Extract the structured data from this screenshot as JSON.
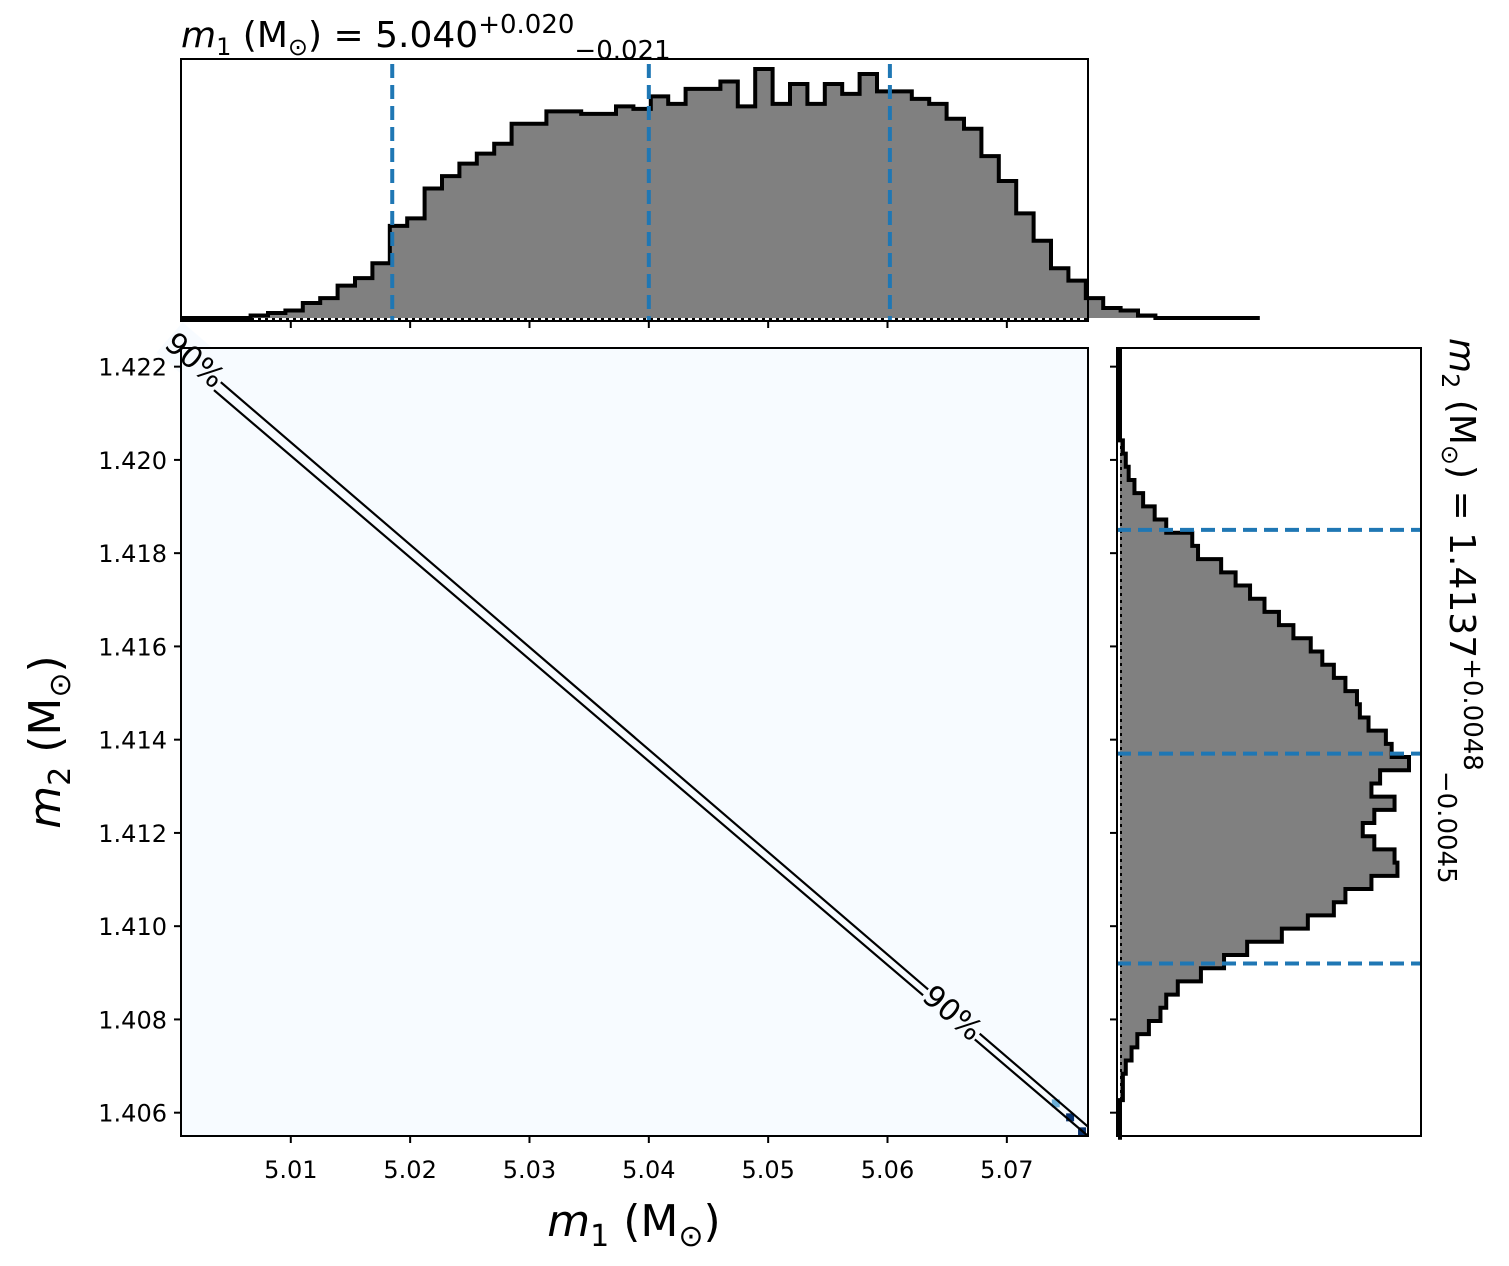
{
  "colors": {
    "hist_fill": "#808080",
    "hist_edge": "#000000",
    "quantile_line": "#1f77b4",
    "density_background": "#f7fbff",
    "density_high": "#08306b",
    "density_mid": "#6baed6"
  },
  "chart_data": [
    {
      "type": "histogram",
      "panel": "top-marginal",
      "title_var": "m",
      "title_sub": "1",
      "title_units": " (M",
      "title_eq": ") = 5.040",
      "title_plus": "+0.020",
      "title_minus": "−0.021",
      "median": 5.04,
      "quantiles": [
        5.0185,
        5.04,
        5.0602
      ],
      "xlim": [
        5.0008,
        5.0768
      ],
      "x_ticks": [
        5.01,
        5.02,
        5.03,
        5.04,
        5.05,
        5.06,
        5.07
      ],
      "bin_edges_start": 5.0008,
      "bin_width": 0.001458,
      "counts": [
        0,
        0,
        0,
        0,
        1,
        2,
        3,
        6,
        8,
        13,
        16,
        22,
        37,
        40,
        52,
        57,
        62,
        66,
        70,
        78,
        78,
        83,
        83,
        82,
        82,
        85,
        84,
        89,
        86,
        92,
        92,
        95,
        85,
        100,
        86,
        94,
        86,
        94,
        90,
        98,
        91,
        91,
        88,
        86,
        80,
        76,
        65,
        55,
        42,
        31,
        20,
        15,
        8,
        4,
        3,
        1,
        0,
        0,
        0,
        0,
        0,
        0
      ]
    },
    {
      "type": "heatmap",
      "panel": "joint-2d",
      "xlabel_var": "m",
      "xlabel_sub": "1",
      "xlabel_units": " (M",
      "xlabel_close": ")",
      "ylabel_var": "m",
      "ylabel_sub": "2",
      "ylabel_units": " (M",
      "ylabel_close": ")",
      "xlim": [
        5.0008,
        5.0768
      ],
      "ylim": [
        1.4055,
        1.4224
      ],
      "x_ticks": [
        5.01,
        5.02,
        5.03,
        5.04,
        5.05,
        5.06,
        5.07
      ],
      "y_ticks": [
        1.406,
        1.408,
        1.41,
        1.412,
        1.414,
        1.416,
        1.418,
        1.42,
        1.422
      ],
      "contour_label": "90%",
      "contour_lines": [
        {
          "x": [
            5.0008,
            5.0768
          ],
          "y": [
            1.4224,
            1.4057
          ]
        },
        {
          "x": [
            5.0008,
            5.0768
          ],
          "y": [
            1.4221,
            1.4055
          ]
        }
      ],
      "high_density_cells": [
        {
          "x": 5.0011,
          "y": 1.4223,
          "level": "high"
        },
        {
          "x": 5.0031,
          "y": 1.422,
          "level": "mid"
        },
        {
          "x": 5.0741,
          "y": 1.4062,
          "level": "mid"
        },
        {
          "x": 5.0753,
          "y": 1.4059,
          "level": "high"
        },
        {
          "x": 5.0763,
          "y": 1.4056,
          "level": "high"
        }
      ]
    },
    {
      "type": "histogram",
      "panel": "right-marginal",
      "orientation": "horizontal",
      "title_var": "m",
      "title_sub": "2",
      "title_units": " (M",
      "title_eq": ") = 1.4137",
      "title_plus": "+0.0048",
      "title_minus": "−0.0045",
      "median": 1.4137,
      "quantiles": [
        1.4092,
        1.4137,
        1.4185
      ],
      "ylim": [
        1.4055,
        1.4224
      ],
      "bin_edges_start": 1.4224,
      "bin_width": -0.000283,
      "counts": [
        0,
        0,
        0,
        0,
        0,
        0,
        0,
        1,
        2,
        3,
        5,
        8,
        12,
        16,
        25,
        27,
        35,
        40,
        45,
        50,
        55,
        60,
        66,
        70,
        74,
        78,
        82,
        83,
        86,
        92,
        94,
        100,
        90,
        87,
        95,
        88,
        84,
        88,
        95,
        96,
        87,
        78,
        74,
        65,
        56,
        44,
        36,
        28,
        20,
        16,
        14,
        10,
        6,
        4,
        2,
        1,
        1,
        0,
        0,
        0
      ]
    }
  ]
}
